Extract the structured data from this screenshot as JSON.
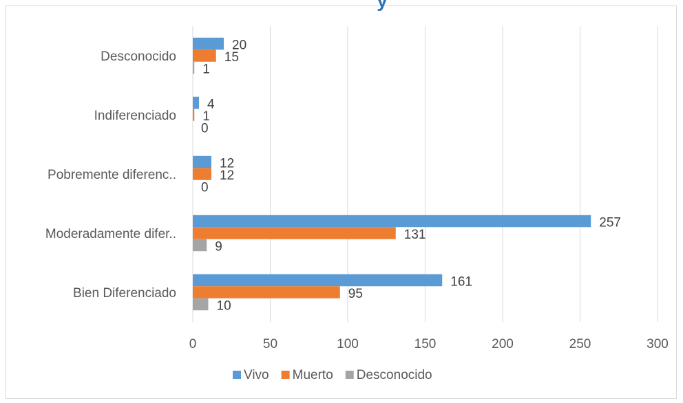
{
  "chart_data": {
    "type": "bar",
    "orientation": "horizontal",
    "title_fragment": "y",
    "categories": [
      "Bien Diferenciado",
      "Moderadamente difer..",
      "Pobremente diferenc..",
      "Indiferenciado",
      "Desconocido"
    ],
    "series": [
      {
        "name": "Vivo",
        "color": "#5b9bd5",
        "values": [
          161,
          257,
          12,
          4,
          20
        ]
      },
      {
        "name": "Muerto",
        "color": "#ed7d31",
        "values": [
          95,
          131,
          12,
          1,
          15
        ]
      },
      {
        "name": "Desconocido",
        "color": "#a5a5a5",
        "values": [
          10,
          9,
          0,
          0,
          1
        ]
      }
    ],
    "xlim": [
      0,
      300
    ],
    "xticks": [
      0,
      50,
      100,
      150,
      200,
      250,
      300
    ],
    "grid": "vertical",
    "legend_position": "bottom",
    "data_labels": true
  }
}
